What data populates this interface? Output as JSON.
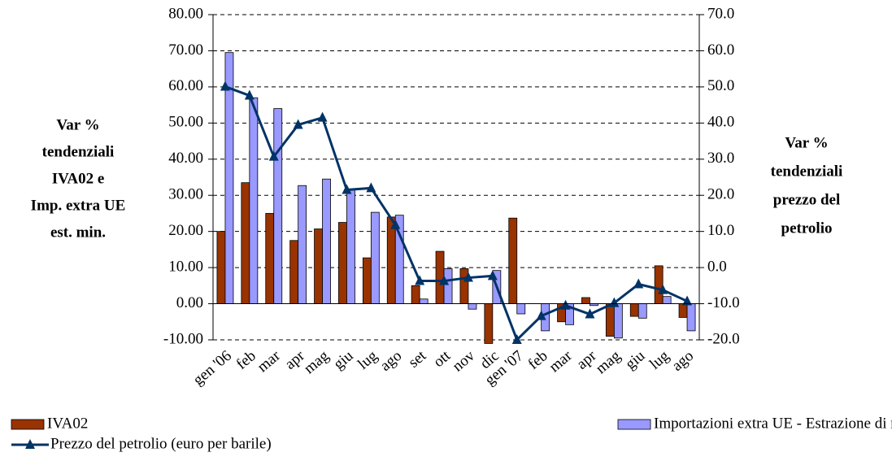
{
  "chart_data": {
    "type": "bar",
    "categories": [
      "gen '06",
      "feb",
      "mar",
      "apr",
      "mag",
      "giu",
      "lug",
      "ago",
      "set",
      "ott",
      "nov",
      "dic",
      "gen '07",
      "feb",
      "mar",
      "apr",
      "mag",
      "giu",
      "lug",
      "ago"
    ],
    "y_label_lines": [
      "Var %",
      "tendenziali",
      "IVA02 e",
      "Imp. extra UE",
      "est. min."
    ],
    "y2_label_lines": [
      "Var %",
      "tendenziali",
      "prezzo del",
      "petrolio"
    ],
    "series": [
      {
        "name": "IVA02",
        "type": "bar",
        "color": "#993300",
        "values": [
          20,
          33.5,
          25,
          17.5,
          20.7,
          22.5,
          12.7,
          24,
          5,
          14.5,
          9.7,
          -11,
          23.7,
          0,
          -5,
          1.7,
          -9,
          -3.5,
          10.5,
          -3.8
        ]
      },
      {
        "name": "Importazioni extra UE - Estrazione di minerali",
        "type": "bar",
        "color": "#9999ff",
        "values": [
          69.5,
          57,
          54,
          32.7,
          34.5,
          31.5,
          25.3,
          24.5,
          1.3,
          9.7,
          -1.5,
          9.2,
          -2.8,
          -7.5,
          -5.8,
          -0.5,
          -9.5,
          -4,
          2,
          -7.5
        ]
      },
      {
        "name": "Prezzo del petrolio (euro per barile)",
        "type": "line",
        "axis": "y2",
        "color": "#003366",
        "values": [
          50.1,
          47.6,
          30.7,
          39.5,
          41.5,
          21.5,
          22,
          11.8,
          -3.7,
          -3.7,
          -2.8,
          -2.3,
          -20,
          -13.4,
          -10.5,
          -12.9,
          -9.8,
          -4.6,
          -6.2,
          -9.3
        ]
      }
    ],
    "ylim": [
      -10,
      80
    ],
    "yticks": [
      {
        "value": -10,
        "label": "-10.00"
      },
      {
        "value": 0,
        "label": "0.00"
      },
      {
        "value": 10,
        "label": "10.00"
      },
      {
        "value": 20,
        "label": "20.00"
      },
      {
        "value": 30,
        "label": "30.00"
      },
      {
        "value": 40,
        "label": "40.00"
      },
      {
        "value": 50,
        "label": "50.00"
      },
      {
        "value": 60,
        "label": "60.00"
      },
      {
        "value": 70,
        "label": "70.00"
      },
      {
        "value": 80,
        "label": "80.00"
      }
    ],
    "y2lim": [
      -20,
      70
    ],
    "y2ticks": [
      {
        "value": -20,
        "label": "-20.0"
      },
      {
        "value": -10,
        "label": "-10.0"
      },
      {
        "value": 0,
        "label": "0.0"
      },
      {
        "value": 10,
        "label": "10.0"
      },
      {
        "value": 20,
        "label": "20.0"
      },
      {
        "value": 30,
        "label": "30.0"
      },
      {
        "value": 40,
        "label": "40.0"
      },
      {
        "value": 50,
        "label": "50.0"
      },
      {
        "value": 60,
        "label": "60.0"
      },
      {
        "value": 70,
        "label": "70.0"
      }
    ],
    "grid": true,
    "legend": "bottom"
  }
}
